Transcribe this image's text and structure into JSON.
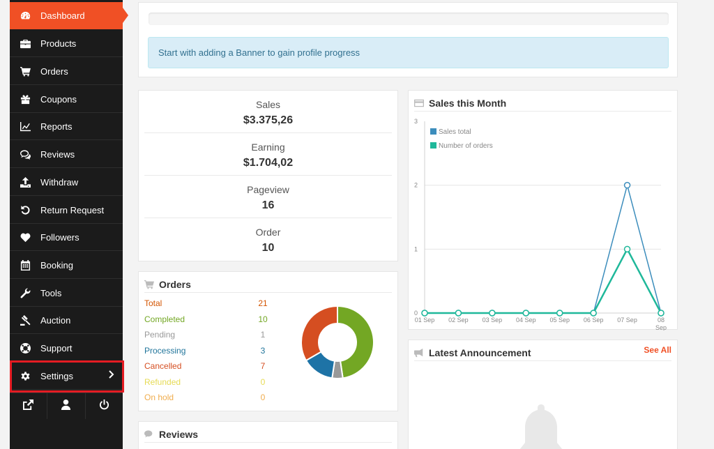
{
  "sidebar": {
    "items": [
      {
        "label": "Dashboard",
        "icon": "dashboard-icon"
      },
      {
        "label": "Products",
        "icon": "briefcase-icon"
      },
      {
        "label": "Orders",
        "icon": "cart-icon"
      },
      {
        "label": "Coupons",
        "icon": "gift-icon"
      },
      {
        "label": "Reports",
        "icon": "line-chart-icon"
      },
      {
        "label": "Reviews",
        "icon": "comments-icon"
      },
      {
        "label": "Withdraw",
        "icon": "upload-icon"
      },
      {
        "label": "Return Request",
        "icon": "undo-icon"
      },
      {
        "label": "Followers",
        "icon": "heart-icon"
      },
      {
        "label": "Booking",
        "icon": "calendar-icon"
      },
      {
        "label": "Tools",
        "icon": "wrench-icon"
      },
      {
        "label": "Auction",
        "icon": "gavel-icon"
      },
      {
        "label": "Support",
        "icon": "lifebuoy-icon"
      },
      {
        "label": "Settings",
        "icon": "gear-icon"
      }
    ],
    "bottom_icons": [
      "external-link-icon",
      "user-icon",
      "power-icon"
    ],
    "active_color": "#f05025",
    "highlight_color": "#e51c23"
  },
  "progress": {
    "alert_text": "Start with adding a Banner to gain profile progress"
  },
  "stats": [
    {
      "label": "Sales",
      "value": "$3.375,26"
    },
    {
      "label": "Earning",
      "value": "$1.704,02"
    },
    {
      "label": "Pageview",
      "value": "16"
    },
    {
      "label": "Order",
      "value": "10"
    }
  ],
  "orders": {
    "title": "Orders",
    "rows": [
      {
        "label": "Total",
        "count": "21",
        "color": "#d35400"
      },
      {
        "label": "Completed",
        "count": "10",
        "color": "#73a724"
      },
      {
        "label": "Pending",
        "count": "1",
        "color": "#999999"
      },
      {
        "label": "Processing",
        "count": "3",
        "color": "#21759b"
      },
      {
        "label": "Cancelled",
        "count": "7",
        "color": "#d54e21"
      },
      {
        "label": "Refunded",
        "count": "0",
        "color": "#e6db55"
      },
      {
        "label": "On hold",
        "count": "0",
        "color": "#f0ad4e"
      }
    ],
    "donut": [
      {
        "label": "Completed",
        "value": 10,
        "color": "#73a724"
      },
      {
        "label": "Pending",
        "value": 1,
        "color": "#999999"
      },
      {
        "label": "Processing",
        "value": 3,
        "color": "#1e73a6"
      },
      {
        "label": "Cancelled",
        "value": 7,
        "color": "#d54e21"
      }
    ]
  },
  "reviews": {
    "title": "Reviews"
  },
  "sales_chart": {
    "title": "Sales this Month"
  },
  "chart_data": {
    "type": "line",
    "x": [
      "01 Sep",
      "02 Sep",
      "03 Sep",
      "04 Sep",
      "05 Sep",
      "06 Sep",
      "07 Sep",
      "08 Sep"
    ],
    "series": [
      {
        "name": "Sales total",
        "values": [
          0,
          0,
          0,
          0,
          0,
          0,
          2,
          0
        ],
        "color": "#3c8dbc"
      },
      {
        "name": "Number of orders",
        "values": [
          0,
          0,
          0,
          0,
          0,
          0,
          1,
          0
        ],
        "color": "#1fb89a"
      }
    ],
    "ylim": [
      0,
      3
    ],
    "yticks": [
      "0",
      "1",
      "2",
      "3"
    ],
    "grid": true,
    "legend": "top-left"
  },
  "announcement": {
    "title": "Latest Announcement",
    "see_all": "See All"
  }
}
